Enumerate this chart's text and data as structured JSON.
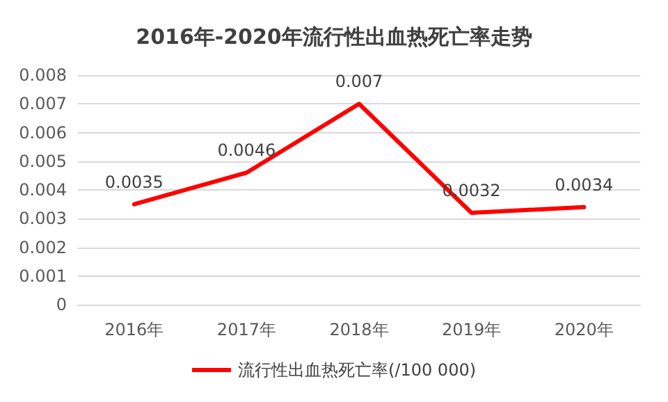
{
  "chart_data": {
    "type": "line",
    "title": "2016年-2020年流行性出血热死亡率走势",
    "categories": [
      "2016年",
      "2017年",
      "2018年",
      "2019年",
      "2020年"
    ],
    "series": [
      {
        "name": "流行性出血热死亡率(/100 000)",
        "color": "#ff0000",
        "values": [
          0.0035,
          0.0046,
          0.007,
          0.0032,
          0.0034
        ]
      }
    ],
    "ylim": [
      0,
      0.008
    ],
    "yticks": [
      0,
      0.001,
      0.002,
      0.003,
      0.004,
      0.005,
      0.006,
      0.007,
      0.008
    ],
    "grid": "y",
    "legend": "bottom",
    "marker": "none",
    "line_style": "solid",
    "data_labels": true
  }
}
